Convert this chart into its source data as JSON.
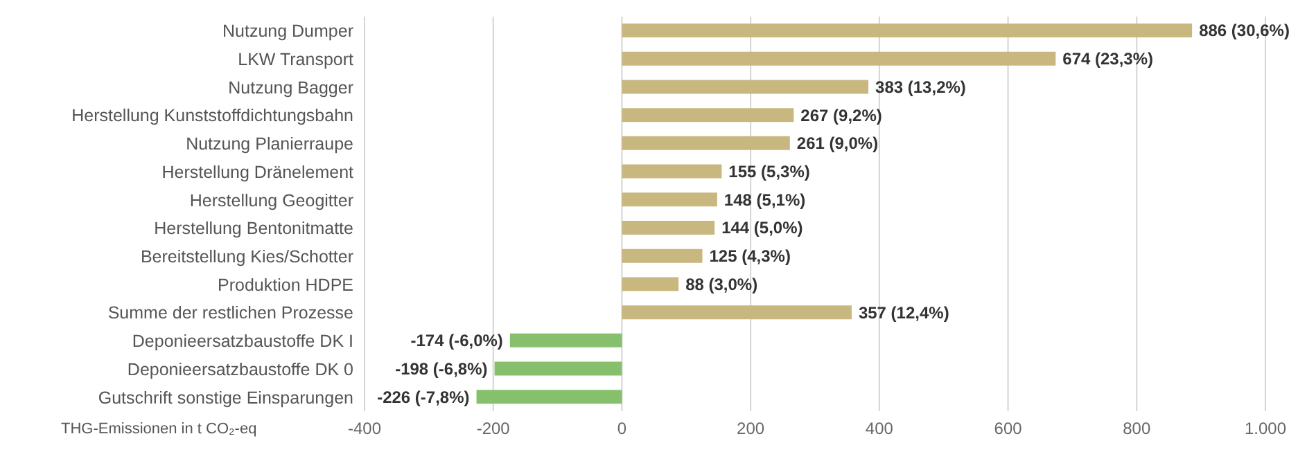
{
  "chart_data": {
    "type": "bar",
    "orientation": "horizontal",
    "xlabel": "THG-Emissionen in t CO₂-eq",
    "categories": [
      "Nutzung Dumper",
      "LKW Transport",
      "Nutzung Bagger",
      "Herstellung Kunststoffdichtungsbahn",
      "Nutzung Planierraupe",
      "Herstellung Dränelement",
      "Herstellung Geogitter",
      "Herstellung Bentonitmatte",
      "Bereitstellung Kies/Schotter",
      "Produktion HDPE",
      "Summe der restlichen Prozesse",
      "Deponieersatzbaustoffe DK I",
      "Deponieersatzbaustoffe DK 0",
      "Gutschrift sonstige Einsparungen"
    ],
    "values": [
      886,
      674,
      383,
      267,
      261,
      155,
      148,
      144,
      125,
      88,
      357,
      -174,
      -198,
      -226
    ],
    "colors": [
      "#c8b77e",
      "#c8b77e",
      "#c8b77e",
      "#c8b77e",
      "#c8b77e",
      "#c8b77e",
      "#c8b77e",
      "#c8b77e",
      "#c8b77e",
      "#c8b77e",
      "#c8b77e",
      "#86c06c",
      "#86c06c",
      "#86c06c"
    ],
    "value_labels": [
      "886 (30,6%)",
      "674 (23,3%)",
      "383 (13,2%)",
      "267 (9,2%)",
      "261 (9,0%)",
      "155 (5,3%)",
      "148 (5,1%)",
      "144 (5,0%)",
      "125 (4,3%)",
      "88 (3,0%)",
      "357 (12,4%)",
      "-174 (-6,0%)",
      "-198 (-6,8%)",
      "-226 (-7,8%)"
    ],
    "xlim": [
      -400,
      1000
    ],
    "xticks": [
      -400,
      -200,
      0,
      200,
      400,
      600,
      800,
      {
        "value": 1000,
        "label": "1.000"
      }
    ],
    "grid": "x",
    "legend": false
  }
}
